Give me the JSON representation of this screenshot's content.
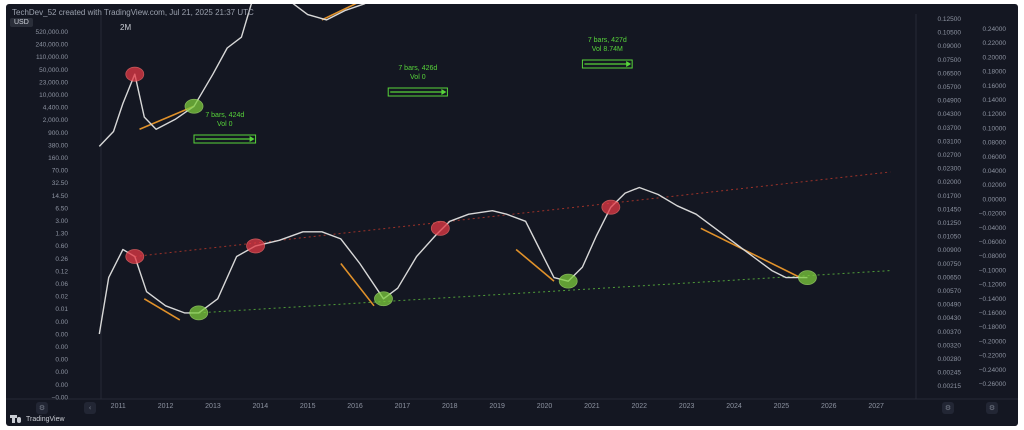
{
  "header": {
    "credit": "TechDev_52 created with TradingView.com, Jul 21, 2025 21:37 UTC",
    "currency": "USD",
    "interval": "2M",
    "brand": "TradingView"
  },
  "colors": {
    "background": "#141722",
    "price_line": "#d8d8d8",
    "axis_text": "#8d93a1",
    "annotation_green": "#57d43a",
    "trend_orange": "#e0912a",
    "red_marker": "#e53945",
    "green_marker": "#7ccc3c",
    "upper_channel": "#c0392b",
    "lower_channel": "#5fbf3f"
  },
  "chart_data": {
    "type": "line",
    "title": "",
    "xlabel": "",
    "ylabel": "",
    "x_ticks": [
      "2011",
      "2012",
      "2013",
      "2014",
      "2015",
      "2016",
      "2017",
      "2018",
      "2019",
      "2020",
      "2021",
      "2022",
      "2023",
      "2024",
      "2025",
      "2026",
      "2027"
    ],
    "x_range": [
      2010.7,
      2027.8
    ],
    "left_axis_ticks": [
      "520,000.00",
      "240,000.00",
      "110,000.00",
      "50,000.00",
      "23,000.00",
      "10,000.00",
      "4,400.00",
      "2,000.00",
      "900.00",
      "380.00",
      "160.00",
      "70.00",
      "32.50",
      "14.50",
      "6.50",
      "3.00",
      "1.30",
      "0.60",
      "0.26",
      "0.12",
      "0.06",
      "0.02",
      "0.01",
      "0.00",
      "0.00",
      "0.00",
      "0.00",
      "0.00",
      "0.00",
      "−0.00"
    ],
    "right_axis_1_ticks": [
      "0.12500",
      "0.10500",
      "0.09000",
      "0.07500",
      "0.06500",
      "0.05700",
      "0.04900",
      "0.04300",
      "0.03700",
      "0.03100",
      "0.02700",
      "0.02300",
      "0.02000",
      "0.01700",
      "0.01450",
      "0.01250",
      "0.01050",
      "0.00900",
      "0.00750",
      "0.00650",
      "0.00570",
      "0.00490",
      "0.00430",
      "0.00370",
      "0.00320",
      "0.00280",
      "0.00245",
      "0.00215"
    ],
    "right_axis_2_ticks": [
      "0.24000",
      "0.22000",
      "0.20000",
      "0.18000",
      "0.16000",
      "0.14000",
      "0.12000",
      "0.10000",
      "0.08000",
      "0.06000",
      "0.04000",
      "0.02000",
      "0.00000",
      "−0.02000",
      "−0.04000",
      "−0.06000",
      "−0.08000",
      "−0.10000",
      "−0.12000",
      "−0.14000",
      "−0.16000",
      "−0.18000",
      "−0.20000",
      "−0.22000",
      "−0.24000",
      "−0.26000"
    ],
    "log_scale": true,
    "grid": false,
    "series": [
      {
        "role": "price",
        "points": [
          [
            2010.6,
            2.0
          ],
          [
            2010.9,
            3.5
          ],
          [
            2011.1,
            10
          ],
          [
            2011.35,
            30
          ],
          [
            2011.55,
            6
          ],
          [
            2011.8,
            3.8
          ],
          [
            2012.2,
            5.5
          ],
          [
            2012.6,
            9
          ],
          [
            2013.0,
            30
          ],
          [
            2013.3,
            80
          ],
          [
            2013.6,
            120
          ],
          [
            2013.9,
            720
          ],
          [
            2014.2,
            550
          ],
          [
            2014.6,
            480
          ],
          [
            2015.0,
            280
          ],
          [
            2015.4,
            230
          ],
          [
            2015.8,
            330
          ],
          [
            2016.2,
            420
          ],
          [
            2016.6,
            600
          ],
          [
            2016.9,
            900
          ],
          [
            2017.3,
            2100
          ],
          [
            2017.7,
            5200
          ],
          [
            2017.95,
            14500
          ],
          [
            2018.2,
            8000
          ],
          [
            2018.6,
            6400
          ],
          [
            2018.9,
            3900
          ],
          [
            2019.3,
            5000
          ],
          [
            2019.6,
            10000
          ],
          [
            2019.9,
            7200
          ],
          [
            2020.2,
            6400
          ],
          [
            2020.5,
            9500
          ],
          [
            2020.8,
            13500
          ],
          [
            2021.05,
            33000
          ],
          [
            2021.3,
            58000
          ],
          [
            2021.5,
            35000
          ],
          [
            2021.85,
            64000
          ],
          [
            2022.2,
            45000
          ],
          [
            2022.5,
            23000
          ],
          [
            2022.9,
            16500
          ],
          [
            2023.3,
            27000
          ],
          [
            2023.7,
            26000
          ],
          [
            2024.0,
            43000
          ],
          [
            2024.3,
            68000
          ],
          [
            2024.7,
            62000
          ],
          [
            2024.95,
            96000
          ],
          [
            2025.3,
            102000
          ],
          [
            2025.55,
            118000
          ]
        ]
      },
      {
        "role": "oscillator",
        "points": [
          [
            2010.6,
            -0.15
          ],
          [
            2010.8,
            -0.07
          ],
          [
            2011.1,
            -0.03
          ],
          [
            2011.35,
            -0.04
          ],
          [
            2011.6,
            -0.09
          ],
          [
            2012.0,
            -0.11
          ],
          [
            2012.4,
            -0.12
          ],
          [
            2012.7,
            -0.12
          ],
          [
            2013.1,
            -0.1
          ],
          [
            2013.5,
            -0.04
          ],
          [
            2013.9,
            -0.025
          ],
          [
            2014.4,
            -0.017
          ],
          [
            2014.9,
            -0.005
          ],
          [
            2015.3,
            -0.005
          ],
          [
            2015.7,
            -0.015
          ],
          [
            2016.1,
            -0.05
          ],
          [
            2016.6,
            -0.1
          ],
          [
            2016.9,
            -0.085
          ],
          [
            2017.3,
            -0.04
          ],
          [
            2017.7,
            -0.01
          ],
          [
            2018.0,
            0.01
          ],
          [
            2018.4,
            0.02
          ],
          [
            2018.9,
            0.025
          ],
          [
            2019.2,
            0.02
          ],
          [
            2019.6,
            0.01
          ],
          [
            2019.9,
            -0.03
          ],
          [
            2020.2,
            -0.07
          ],
          [
            2020.5,
            -0.075
          ],
          [
            2020.8,
            -0.055
          ],
          [
            2021.1,
            -0.01
          ],
          [
            2021.4,
            0.03
          ],
          [
            2021.7,
            0.05
          ],
          [
            2022.0,
            0.058
          ],
          [
            2022.4,
            0.048
          ],
          [
            2022.8,
            0.032
          ],
          [
            2023.2,
            0.02
          ],
          [
            2023.6,
            0.0
          ],
          [
            2024.0,
            -0.02
          ],
          [
            2024.4,
            -0.04
          ],
          [
            2024.8,
            -0.06
          ],
          [
            2025.1,
            -0.07
          ],
          [
            2025.55,
            -0.07
          ]
        ]
      }
    ],
    "annotations": [
      {
        "text_line1": "7 bars, 424d",
        "text_line2": "Vol 0",
        "x_start": 2012.6,
        "x_end": 2013.9
      },
      {
        "text_line1": "7 bars, 426d",
        "text_line2": "Vol 0",
        "x_start": 2016.7,
        "x_end": 2017.95
      },
      {
        "text_line1": "7 bars, 427d",
        "text_line2": "Vol 8.74M",
        "x_start": 2020.8,
        "x_end": 2021.85
      }
    ],
    "top_markers": [
      {
        "color": "red",
        "x": 2011.35,
        "y": 30
      },
      {
        "color": "green",
        "x": 2012.6,
        "y": 9
      },
      {
        "color": "red",
        "x": 2013.9,
        "y": 720
      },
      {
        "color": "green",
        "x": 2016.9,
        "y": 900
      },
      {
        "color": "red",
        "x": 2017.95,
        "y": 14500
      },
      {
        "color": "green",
        "x": 2020.8,
        "y": 13500
      },
      {
        "color": "red",
        "x": 2021.85,
        "y": 64000
      },
      {
        "color": "green",
        "x": 2025.55,
        "y": 118000
      }
    ],
    "bottom_markers": [
      {
        "color": "red",
        "x": 2011.35,
        "y": -0.04
      },
      {
        "color": "green",
        "x": 2012.7,
        "y": -0.12
      },
      {
        "color": "red",
        "x": 2013.9,
        "y": -0.025
      },
      {
        "color": "green",
        "x": 2016.6,
        "y": -0.1
      },
      {
        "color": "red",
        "x": 2017.8,
        "y": 0.0
      },
      {
        "color": "green",
        "x": 2020.5,
        "y": -0.075
      },
      {
        "color": "red",
        "x": 2021.4,
        "y": 0.03
      },
      {
        "color": "green",
        "x": 2025.55,
        "y": -0.07
      }
    ],
    "upper_trend_segments": [
      [
        [
          2011.45,
          3.8
        ],
        [
          2012.6,
          9
        ]
      ],
      [
        [
          2015.3,
          230
        ],
        [
          2016.9,
          900
        ]
      ],
      [
        [
          2018.9,
          3900
        ],
        [
          2020.8,
          13500
        ]
      ],
      [
        [
          2022.9,
          16500
        ],
        [
          2025.55,
          118000
        ]
      ]
    ],
    "lower_trend_segments": [
      [
        [
          2011.55,
          -0.1
        ],
        [
          2012.3,
          -0.13
        ]
      ],
      [
        [
          2015.7,
          -0.05
        ],
        [
          2016.4,
          -0.11
        ]
      ],
      [
        [
          2019.4,
          -0.03
        ],
        [
          2020.2,
          -0.075
        ]
      ],
      [
        [
          2023.3,
          0.0
        ],
        [
          2025.4,
          -0.07
        ]
      ]
    ],
    "channel_lines": [
      {
        "color": "red",
        "from": [
          2011.35,
          -0.04
        ],
        "to": [
          2027.3,
          0.08
        ]
      },
      {
        "color": "green",
        "from": [
          2012.7,
          -0.12
        ],
        "to": [
          2027.3,
          -0.06
        ]
      }
    ]
  }
}
